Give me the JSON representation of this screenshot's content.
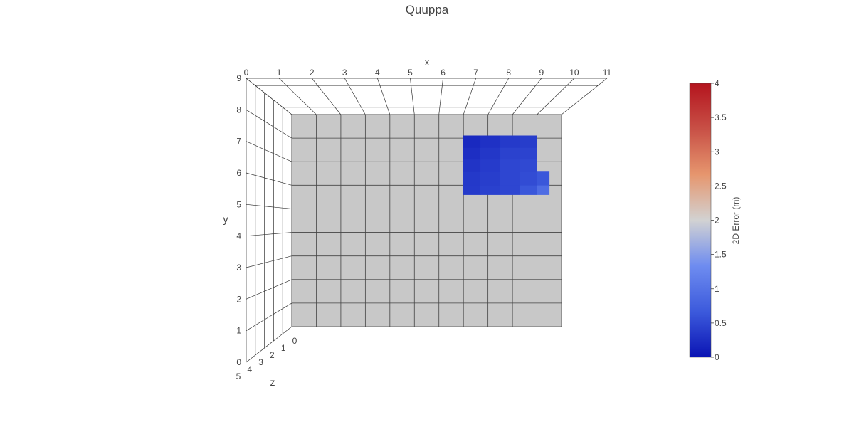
{
  "chart_data": {
    "type": "surface",
    "title": "Quuppa",
    "xlabel": "x",
    "ylabel": "y",
    "zlabel": "z",
    "x_ticks": [
      "0",
      "1",
      "2",
      "3",
      "4",
      "5",
      "6",
      "7",
      "8",
      "9",
      "10",
      "11"
    ],
    "y_ticks": [
      "0",
      "1",
      "2",
      "3",
      "4",
      "5",
      "6",
      "7",
      "8",
      "9"
    ],
    "z_ticks": [
      "0",
      "1",
      "2",
      "3",
      "4",
      "5"
    ],
    "x_range": [
      0,
      11
    ],
    "y_range": [
      0,
      9
    ],
    "z_range": [
      0,
      5
    ],
    "floor_color": "#c8c8c8",
    "colorbar": {
      "title": "2D Error (m)",
      "range": [
        0,
        4
      ],
      "ticks": [
        "0",
        "0.5",
        "1",
        "1.5",
        "2",
        "2.5",
        "3",
        "3.5",
        "4"
      ],
      "colorscale": [
        "#0a14b4",
        "#3c5adc",
        "#6e8cf0",
        "#d2d2d2",
        "#e6966e",
        "#c85046",
        "#b4141e"
      ]
    },
    "surface": {
      "x": [
        7.0,
        7.7,
        8.5,
        9.3,
        10.0,
        10.5
      ],
      "y": [
        5.6,
        6.0,
        6.6,
        7.1,
        7.6,
        8.1
      ],
      "error": [
        [
          0.3,
          0.4,
          0.45,
          0.5,
          0.95,
          1.3
        ],
        [
          0.35,
          0.4,
          0.45,
          0.5,
          0.6,
          0.85
        ],
        [
          0.3,
          0.35,
          0.4,
          0.55,
          0.5,
          0.6
        ],
        [
          0.25,
          0.3,
          0.45,
          0.5,
          0.45,
          null
        ],
        [
          0.2,
          0.25,
          0.35,
          0.45,
          0.4,
          null
        ],
        [
          0.15,
          0.2,
          0.3,
          0.35,
          0.35,
          null
        ]
      ]
    }
  }
}
